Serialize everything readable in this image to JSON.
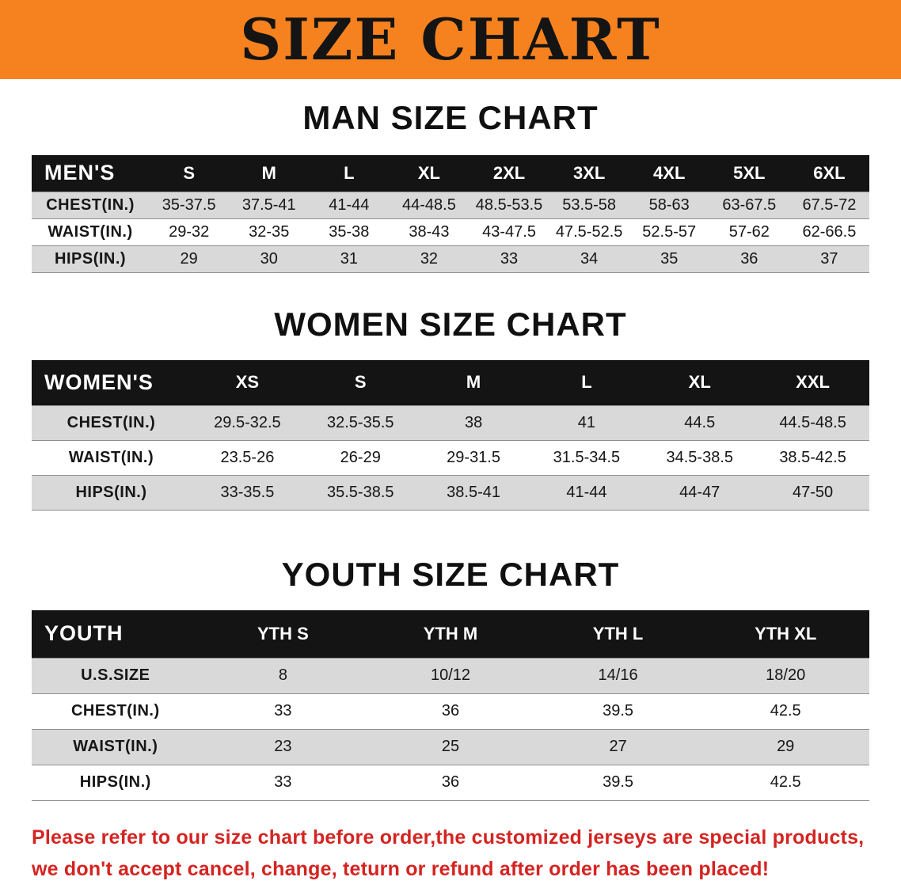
{
  "banner": {
    "title": "SIZE CHART"
  },
  "colors": {
    "banner_bg": "#f6821f",
    "table_header_bg": "#141414",
    "row_shade": "#d9d9d9",
    "notice_text": "#d42421"
  },
  "sections": [
    {
      "id": "men",
      "heading": "MAN SIZE CHART",
      "table": {
        "header": [
          "MEN'S",
          "S",
          "M",
          "L",
          "XL",
          "2XL",
          "3XL",
          "4XL",
          "5XL",
          "6XL"
        ],
        "rows": [
          [
            "CHEST(IN.)",
            "35-37.5",
            "37.5-41",
            "41-44",
            "44-48.5",
            "48.5-53.5",
            "53.5-58",
            "58-63",
            "63-67.5",
            "67.5-72"
          ],
          [
            "WAIST(IN.)",
            "29-32",
            "32-35",
            "35-38",
            "38-43",
            "43-47.5",
            "47.5-52.5",
            "52.5-57",
            "57-62",
            "62-66.5"
          ],
          [
            "HIPS(IN.)",
            "29",
            "30",
            "31",
            "32",
            "33",
            "34",
            "35",
            "36",
            "37"
          ]
        ]
      }
    },
    {
      "id": "women",
      "heading": "WOMEN SIZE CHART",
      "table": {
        "header": [
          "WOMEN'S",
          "XS",
          "S",
          "M",
          "L",
          "XL",
          "XXL"
        ],
        "rows": [
          [
            "CHEST(IN.)",
            "29.5-32.5",
            "32.5-35.5",
            "38",
            "41",
            "44.5",
            "44.5-48.5"
          ],
          [
            "WAIST(IN.)",
            "23.5-26",
            "26-29",
            "29-31.5",
            "31.5-34.5",
            "34.5-38.5",
            "38.5-42.5"
          ],
          [
            "HIPS(IN.)",
            "33-35.5",
            "35.5-38.5",
            "38.5-41",
            "41-44",
            "44-47",
            "47-50"
          ]
        ]
      }
    },
    {
      "id": "youth",
      "heading": "YOUTH SIZE CHART",
      "table": {
        "header": [
          "YOUTH",
          "YTH S",
          "YTH M",
          "YTH L",
          "YTH XL"
        ],
        "rows": [
          [
            "U.S.SIZE",
            "8",
            "10/12",
            "14/16",
            "18/20"
          ],
          [
            "CHEST(IN.)",
            "33",
            "36",
            "39.5",
            "42.5"
          ],
          [
            "WAIST(IN.)",
            "23",
            "25",
            "27",
            "29"
          ],
          [
            "HIPS(IN.)",
            "33",
            "36",
            "39.5",
            "42.5"
          ]
        ]
      }
    }
  ],
  "notice": {
    "line1": "Please refer to our size chart before order,the customized jerseys are special products,",
    "line2": "we don't accept cancel, change, teturn or refund after order has been placed!"
  }
}
